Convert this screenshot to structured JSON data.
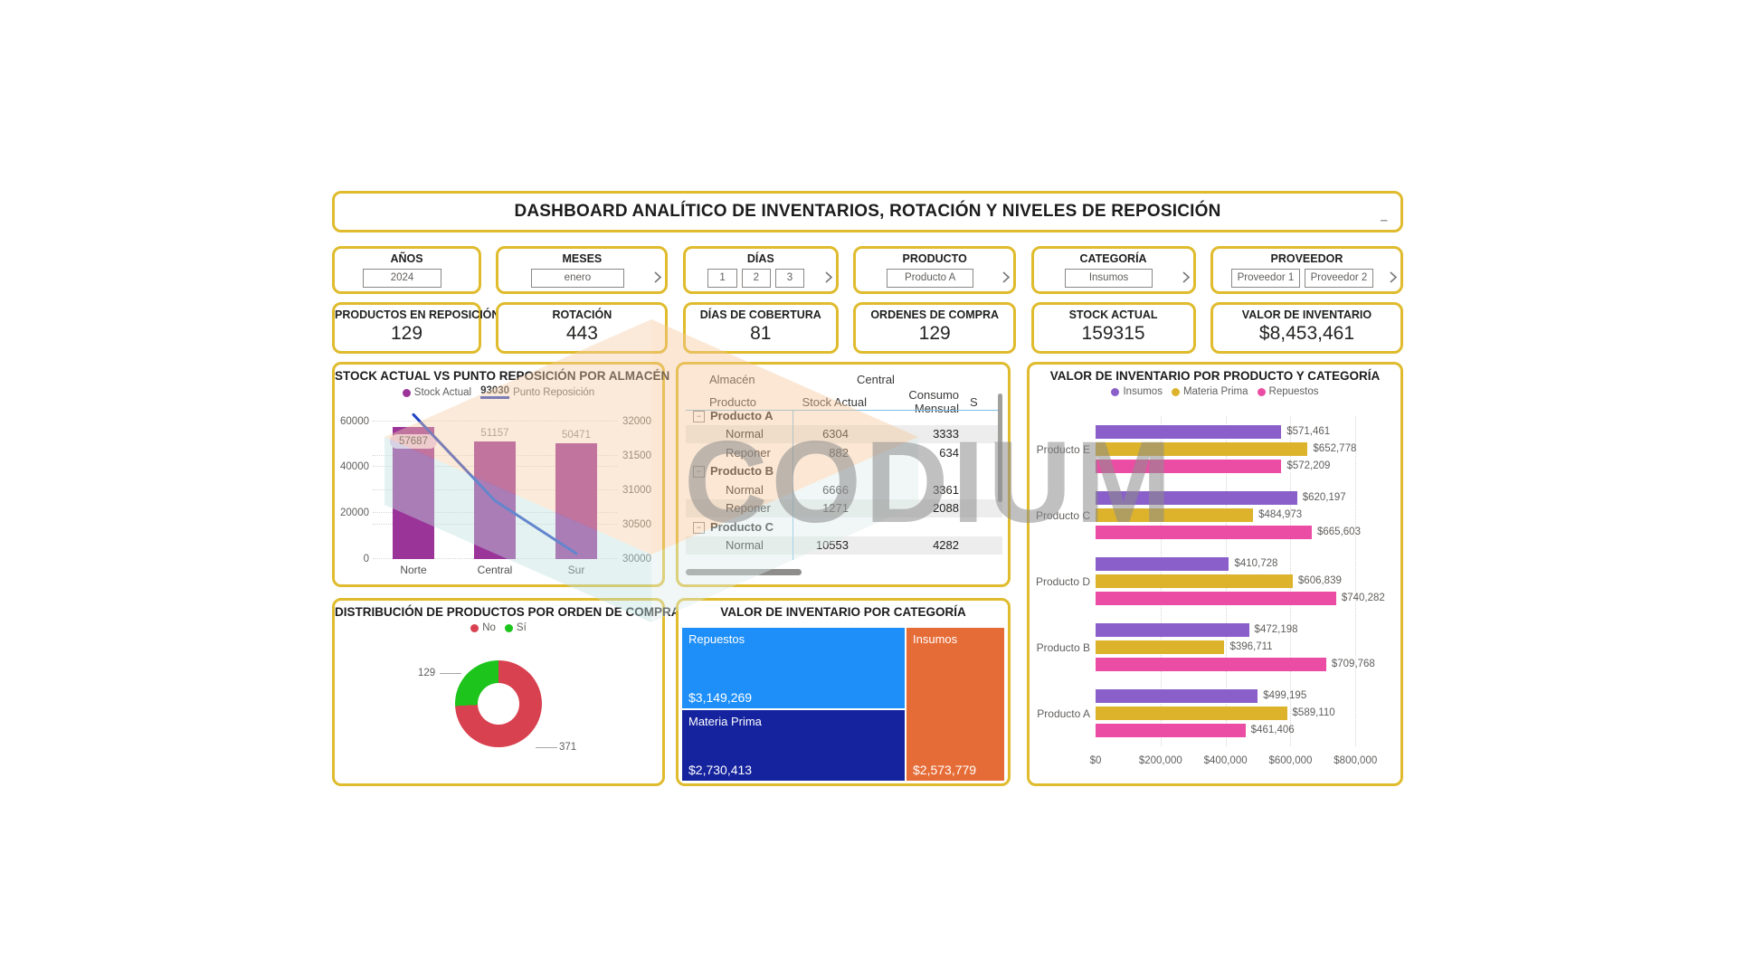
{
  "watermark": {
    "text": "CODIUM"
  },
  "header": {
    "title": "DASHBOARD ANALÍTICO DE INVENTARIOS, ROTACIÓN Y NIVELES DE REPOSICIÓN",
    "dash": "–"
  },
  "slicers": [
    {
      "label": "AÑOS",
      "values": [
        "2024"
      ],
      "chevron": false
    },
    {
      "label": "MESES",
      "values": [
        "enero"
      ],
      "chevron": true
    },
    {
      "label": "DÍAS",
      "values": [
        "1",
        "2",
        "3"
      ],
      "chevron": true
    },
    {
      "label": "PRODUCTO",
      "values": [
        "Producto A"
      ],
      "chevron": true
    },
    {
      "label": "CATEGORÍA",
      "values": [
        "Insumos"
      ],
      "chevron": true
    },
    {
      "label": "PROVEEDOR",
      "values": [
        "Proveedor 1",
        "Proveedor 2"
      ],
      "chevron": true
    }
  ],
  "kpis": [
    {
      "label": "PRODUCTOS EN REPOSICIÓN",
      "value": "129"
    },
    {
      "label": "ROTACIÓN",
      "value": "443"
    },
    {
      "label": "DÍAS DE COBERTURA",
      "value": "81"
    },
    {
      "label": "ORDENES DE COMPRA",
      "value": "129"
    },
    {
      "label": "STOCK ACTUAL",
      "value": "159315"
    },
    {
      "label": "VALOR DE INVENTARIO",
      "value": "$8,453,461"
    }
  ],
  "chart_data": [
    {
      "id": "stock_vs_punto_reposicion",
      "type": "bar+line",
      "title": "STOCK ACTUAL VS PUNTO REPOSICIÓN POR ALMACÉN",
      "categories": [
        "Norte",
        "Central",
        "Sur"
      ],
      "series": [
        {
          "name": "Stock Actual",
          "type": "bar",
          "color": "#9B3499",
          "axis": "left",
          "values": [
            57687,
            51157,
            50471
          ]
        },
        {
          "name": "Punto Reposición",
          "type": "line",
          "color": "#2144C2",
          "axis": "right",
          "values": [
            32100,
            30850,
            30080
          ],
          "legend_total_label": "93030"
        }
      ],
      "left_axis": {
        "ticks": [
          0,
          20000,
          40000,
          60000
        ],
        "max": 65000
      },
      "right_axis": {
        "ticks": [
          30000,
          30500,
          31000,
          31500,
          32000
        ],
        "min": 30000,
        "max": 32170
      },
      "legend_position": "top",
      "grid": true
    },
    {
      "id": "matrix_central",
      "type": "table",
      "corner_label": "Almacén",
      "column_group": "Central",
      "columns": [
        "Producto",
        "Stock Actual",
        "Consumo Mensual",
        "S"
      ],
      "rows": [
        {
          "label": "Producto A",
          "level": 0,
          "expander": "−",
          "cells": [
            "",
            ""
          ],
          "shaded": false
        },
        {
          "label": "Normal",
          "level": 1,
          "cells": [
            "6304",
            "3333"
          ],
          "shaded": true
        },
        {
          "label": "Reponer",
          "level": 1,
          "cells": [
            "882",
            "634"
          ],
          "shaded": false
        },
        {
          "label": "Producto B",
          "level": 0,
          "expander": "−",
          "cells": [
            "",
            ""
          ],
          "shaded": false
        },
        {
          "label": "Normal",
          "level": 1,
          "cells": [
            "6666",
            "3361"
          ],
          "shaded": false
        },
        {
          "label": "Reponer",
          "level": 1,
          "cells": [
            "1271",
            "2088"
          ],
          "shaded": true
        },
        {
          "label": "Producto C",
          "level": 0,
          "expander": "−",
          "cells": [
            "",
            ""
          ],
          "shaded": false
        },
        {
          "label": "Normal",
          "level": 1,
          "cells": [
            "10553",
            "4282"
          ],
          "shaded": true
        }
      ]
    },
    {
      "id": "valor_inventario_por_producto_categoria",
      "type": "bar",
      "orientation": "horizontal",
      "title": "VALOR DE INVENTARIO POR PRODUCTO Y CATEGORÍA",
      "categories": [
        "Producto E",
        "Producto C",
        "Producto D",
        "Producto B",
        "Producto A"
      ],
      "series": [
        {
          "name": "Insumos",
          "color": "#8A5FC9",
          "values": [
            571461,
            620197,
            410728,
            472198,
            499195
          ],
          "labels": [
            "$571,461",
            "$620,197",
            "$410,728",
            "$472,198",
            "$499,195"
          ]
        },
        {
          "name": "Materia Prima",
          "color": "#DDB32C",
          "values": [
            652778,
            484973,
            606839,
            396711,
            589110
          ],
          "labels": [
            "$652,778",
            "$484,973",
            "$606,839",
            "$396,711",
            "$589,110"
          ]
        },
        {
          "name": "Repuestos",
          "color": "#EB4DA4",
          "values": [
            572209,
            665603,
            740282,
            709768,
            461406
          ],
          "labels": [
            "$572,209",
            "$665,603",
            "$740,282",
            "$709,768",
            "$461,406"
          ]
        }
      ],
      "x_axis": {
        "ticks": [
          0,
          200000,
          400000,
          600000,
          800000
        ],
        "tick_labels": [
          "$0",
          "$200,000",
          "$400,000",
          "$600,000",
          "$800,000"
        ],
        "max": 880000
      },
      "legend_position": "top",
      "grid": true
    },
    {
      "id": "distribucion_por_orden_de_compra",
      "type": "pie",
      "donut": true,
      "title": "DISTRIBUCIÓN DE PRODUCTOS POR ORDEN DE COMPRA",
      "labels": [
        "No",
        "Sí"
      ],
      "values": [
        371,
        129
      ],
      "value_labels": [
        "371",
        "129"
      ],
      "colors": [
        "#D8414F",
        "#1CC41C"
      ],
      "legend_position": "top"
    },
    {
      "id": "valor_inventario_por_categoria",
      "type": "treemap",
      "title": "VALOR DE INVENTARIO POR CATEGORÍA",
      "tiles": [
        {
          "label": "Repuestos",
          "value": 3149269,
          "value_label": "$3,149,269",
          "color": "#1E8FF8"
        },
        {
          "label": "Materia Prima",
          "value": 2730413,
          "value_label": "$2,730,413",
          "color": "#15239E"
        },
        {
          "label": "Insumos",
          "value": 2573779,
          "value_label": "$2,573,779",
          "color": "#E66C37"
        }
      ]
    }
  ]
}
